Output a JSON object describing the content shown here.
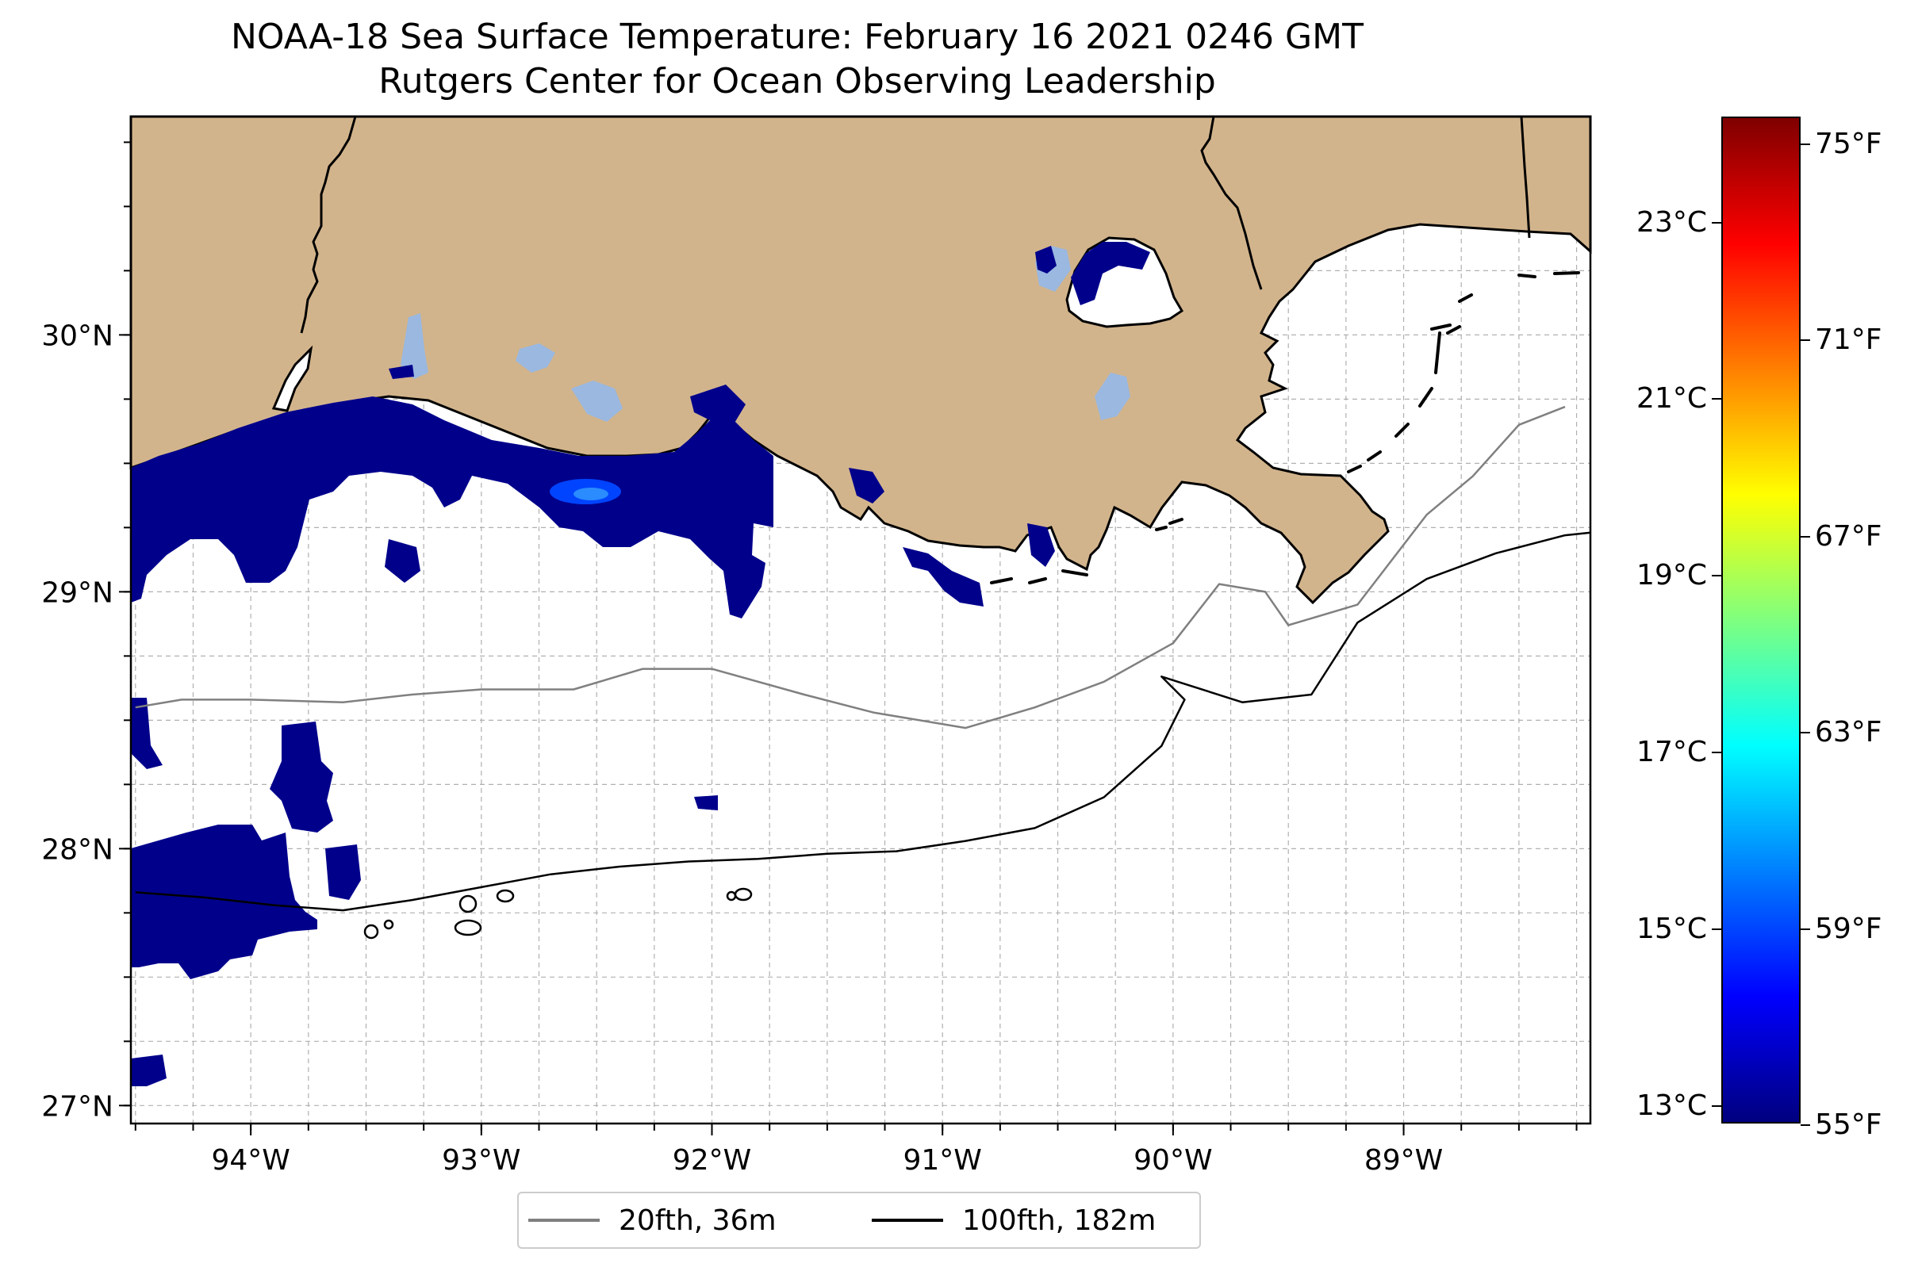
{
  "title": "NOAA-18 Sea Surface Temperature: February 16 2021 0246 GMT",
  "subtitle": "Rutgers Center for Ocean Observing Leadership",
  "map": {
    "lon_range": [
      -94.52,
      -88.19
    ],
    "lat_range": [
      26.93,
      30.85
    ],
    "gridlines": true,
    "lon_ticks": [
      {
        "value": -94,
        "label": "94°W"
      },
      {
        "value": -93,
        "label": "93°W"
      },
      {
        "value": -92,
        "label": "92°W"
      },
      {
        "value": -91,
        "label": "91°W"
      },
      {
        "value": -90,
        "label": "90°W"
      },
      {
        "value": -89,
        "label": "89°W"
      }
    ],
    "lat_ticks": [
      {
        "value": 27,
        "label": "27°N"
      },
      {
        "value": 28,
        "label": "28°N"
      },
      {
        "value": 29,
        "label": "29°N"
      },
      {
        "value": 30,
        "label": "30°N"
      }
    ],
    "colors": {
      "land": "#d2b48c",
      "ocean": "#ffffff",
      "cold_sst": "#00008b",
      "cool_sst": "#0000ff",
      "lake_fill": "#9ab8e0",
      "contour_20fth": "#808080",
      "contour_100fth": "#000000"
    }
  },
  "legend": {
    "entries": [
      {
        "label": "20fth, 36m",
        "color": "#808080"
      },
      {
        "label": "100fth, 182m",
        "color": "#000000"
      }
    ],
    "placement": "bottom-center"
  },
  "colorbar": {
    "colormap": "jet",
    "celsius_range": [
      12.8,
      24.2
    ],
    "celsius_ticks": [
      {
        "value": 13,
        "label": "13°C"
      },
      {
        "value": 15,
        "label": "15°C"
      },
      {
        "value": 17,
        "label": "17°C"
      },
      {
        "value": 19,
        "label": "19°C"
      },
      {
        "value": 21,
        "label": "21°C"
      },
      {
        "value": 23,
        "label": "23°C"
      }
    ],
    "fahrenheit_ticks": [
      {
        "value": 55,
        "label": "55°F"
      },
      {
        "value": 59,
        "label": "59°F"
      },
      {
        "value": 63,
        "label": "63°F"
      },
      {
        "value": 67,
        "label": "67°F"
      },
      {
        "value": 71,
        "label": "71°F"
      },
      {
        "value": 75,
        "label": "75°F"
      }
    ]
  },
  "chart_data": {
    "type": "heatmap",
    "title": "NOAA-18 Sea Surface Temperature: February 16 2021 0246 GMT",
    "subtitle": "Rutgers Center for Ocean Observing Leadership",
    "x_range": [
      -94.52,
      -88.19
    ],
    "y_range": [
      26.93,
      30.85
    ],
    "value_range_celsius": [
      12.8,
      24.2
    ],
    "series": [
      {
        "name": "20fth, 36m",
        "lon": [
          -94.5,
          -94.3,
          -94.0,
          -93.6,
          -93.3,
          -93.0,
          -92.6,
          -92.3,
          -92.0,
          -91.6,
          -91.3,
          -90.9,
          -90.6,
          -90.3,
          -90.0,
          -89.8,
          -89.6,
          -89.5,
          -89.2,
          -88.9,
          -88.7,
          -88.5,
          -88.3
        ],
        "lat": [
          28.55,
          28.58,
          28.58,
          28.57,
          28.6,
          28.62,
          28.62,
          28.7,
          28.7,
          28.6,
          28.53,
          28.47,
          28.55,
          28.65,
          28.8,
          29.03,
          29.0,
          28.87,
          28.95,
          29.3,
          29.45,
          29.65,
          29.72
        ]
      },
      {
        "name": "100fth, 182m",
        "lon": [
          -94.5,
          -94.2,
          -93.9,
          -93.6,
          -93.3,
          -93.0,
          -92.7,
          -92.4,
          -92.1,
          -91.8,
          -91.5,
          -91.2,
          -90.9,
          -90.6,
          -90.3,
          -90.05,
          -89.95,
          -90.05,
          -89.7,
          -89.4,
          -89.2,
          -88.9,
          -88.6,
          -88.3,
          -88.19
        ],
        "lat": [
          27.83,
          27.81,
          27.78,
          27.76,
          27.8,
          27.85,
          27.9,
          27.93,
          27.95,
          27.96,
          27.98,
          27.99,
          28.03,
          28.08,
          28.2,
          28.4,
          28.58,
          28.67,
          28.57,
          28.6,
          28.88,
          29.05,
          29.15,
          29.22,
          29.23
        ]
      }
    ]
  }
}
